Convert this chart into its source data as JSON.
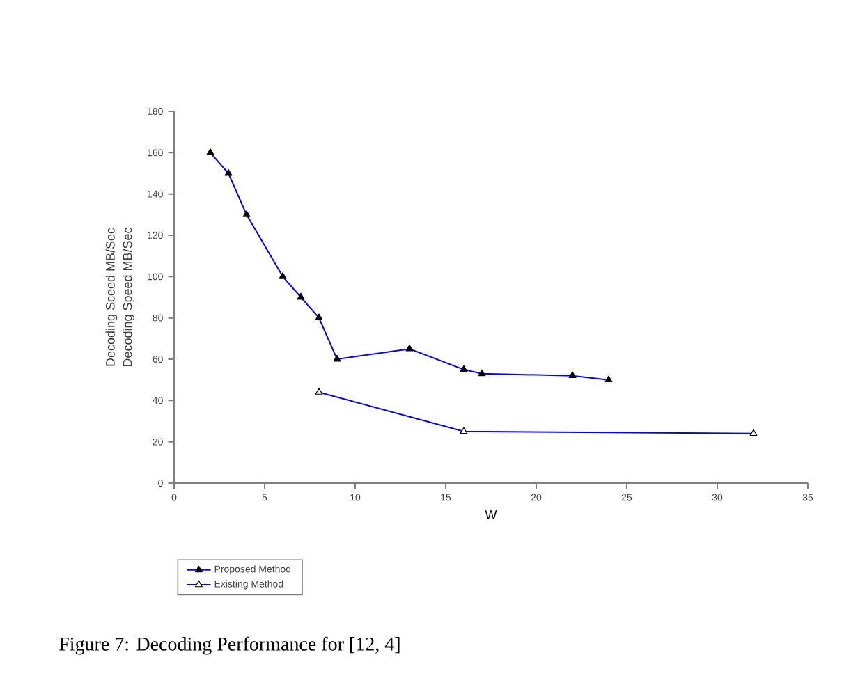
{
  "chart_data": {
    "type": "line",
    "title": "Figure 7: Decoding Performance for [12, 4]",
    "xlabel": "W",
    "ylabel": "Decoding Speed MB/Sec",
    "annotations": [
      "Decoding Sceed MB/Sec"
    ],
    "series": [
      {
        "name": "Proposed Method",
        "color": "#0000ff",
        "x": [
          2,
          3,
          4,
          6,
          7,
          8,
          9,
          13,
          16,
          17,
          22,
          24
        ],
        "values": [
          160,
          150,
          130,
          100,
          90,
          80,
          60,
          65,
          55,
          53,
          52,
          50
        ]
      },
      {
        "name": "Existing Method",
        "color": "#0000ff",
        "x": [
          8,
          16,
          32
        ],
        "values": [
          44,
          25,
          24
        ]
      }
    ],
    "xlim": [
      0,
      35
    ],
    "ylim": [
      0,
      180
    ],
    "xticks": [
      0,
      5,
      10,
      15,
      20,
      25,
      30,
      35
    ],
    "yticks": [
      0,
      20,
      40,
      60,
      80,
      100,
      120,
      140,
      160,
      180
    ],
    "grid": false,
    "legend": "bottom left",
    "marker": "triangle",
    "line_style": "solid"
  }
}
